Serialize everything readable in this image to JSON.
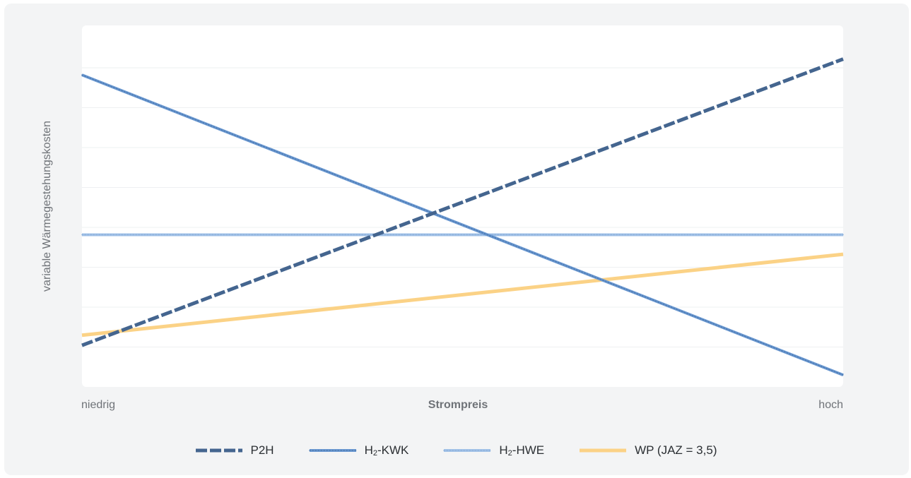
{
  "chart_data": {
    "type": "line",
    "ylabel": "variable Wärmegestehungskosten",
    "xlabel": "Strompreis",
    "x_ticks": [
      "niedrig",
      "hoch"
    ],
    "x": [
      0,
      1
    ],
    "ylim": [
      0,
      1
    ],
    "grid": true,
    "legend_position": "bottom",
    "series": [
      {
        "name": "P2H",
        "values": [
          0.115,
          0.907
        ],
        "color": "#44658f",
        "style": "dashed"
      },
      {
        "name": "H₂-KWK",
        "values": [
          0.863,
          0.033
        ],
        "color": "#6c9ad3",
        "style": "dotted"
      },
      {
        "name": "H₂-HWE",
        "values": [
          0.421,
          0.421
        ],
        "color": "#a3c3e8",
        "style": "dotted-light"
      },
      {
        "name": "WP (JAZ = 3,5)",
        "values": [
          0.143,
          0.367
        ],
        "color": "#fbd286",
        "style": "solid"
      }
    ],
    "legend": [
      {
        "prefix": "P2H",
        "sub": "",
        "suffix": ""
      },
      {
        "prefix": "H",
        "sub": "2",
        "suffix": "-KWK"
      },
      {
        "prefix": "H",
        "sub": "2",
        "suffix": "-HWE"
      },
      {
        "prefix": "WP (JAZ = 3,5)",
        "sub": "",
        "suffix": ""
      }
    ]
  }
}
